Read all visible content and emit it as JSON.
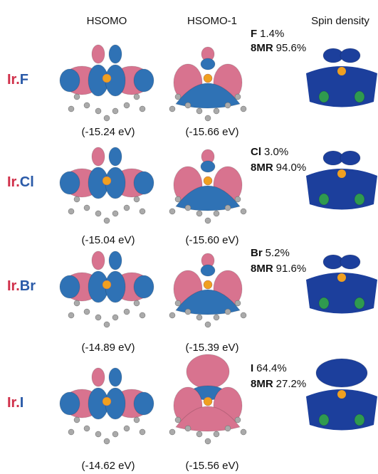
{
  "headers": [
    "HSOMO",
    "HSOMO-1",
    "Spin density"
  ],
  "rows": [
    {
      "metal": "Ir.",
      "halide": "F",
      "hsomo_energy": "(-15.24 eV)",
      "hsomo1_energy": "(-15.66 eV)",
      "contributions": [
        {
          "atom": "F",
          "percent": "1.4%"
        },
        {
          "atom": "8MR",
          "percent": "95.6%"
        }
      ]
    },
    {
      "metal": "Ir.",
      "halide": "Cl",
      "hsomo_energy": "(-15.04 eV)",
      "hsomo1_energy": "(-15.60 eV)",
      "contributions": [
        {
          "atom": "Cl",
          "percent": "3.0%"
        },
        {
          "atom": "8MR",
          "percent": "94.0%"
        }
      ]
    },
    {
      "metal": "Ir.",
      "halide": "Br",
      "hsomo_energy": "(-14.89 eV)",
      "hsomo1_energy": "(-15.39 eV)",
      "contributions": [
        {
          "atom": "Br",
          "percent": "5.2%"
        },
        {
          "atom": "8MR",
          "percent": "91.6%"
        }
      ]
    },
    {
      "metal": "Ir.",
      "halide": "I",
      "hsomo_energy": "(-14.62 eV)",
      "hsomo1_energy": "(-15.56 eV)",
      "contributions": [
        {
          "atom": "I",
          "percent": "64.4%"
        },
        {
          "atom": "8MR",
          "percent": "27.2%"
        }
      ]
    }
  ]
}
